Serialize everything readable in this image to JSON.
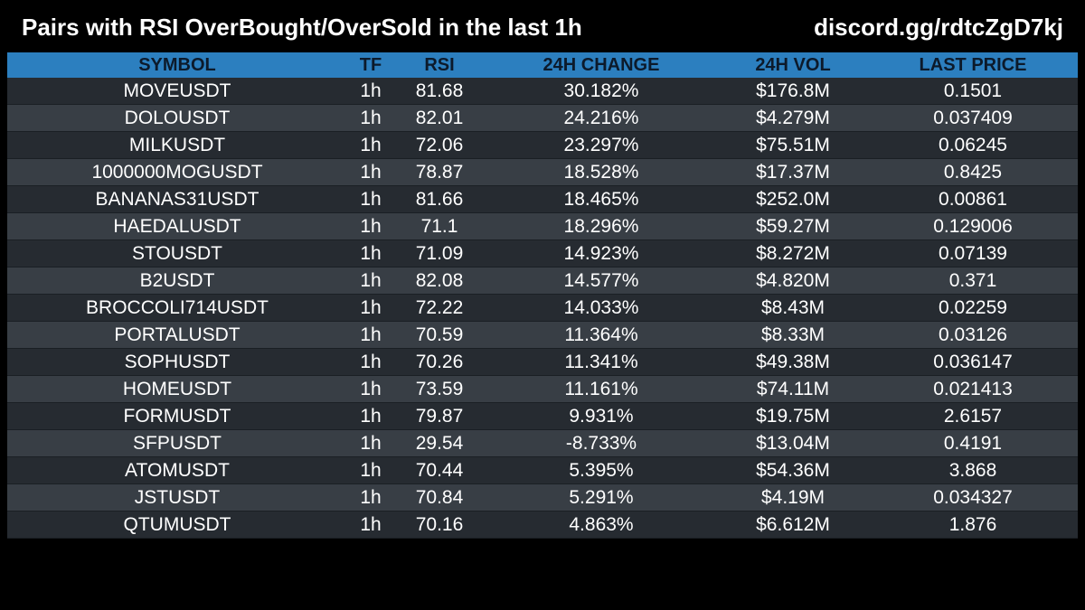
{
  "header": {
    "title": "Pairs with RSI OverBought/OverSold in the last 1h",
    "link": "discord.gg/rdtcZgD7kj"
  },
  "colors": {
    "background": "#000000",
    "header_row": "#2c7fbf",
    "header_text": "#0c1a2b",
    "row_odd": "#262b31",
    "row_even": "#383e45",
    "text": "#ffffff"
  },
  "table": {
    "columns": [
      "SYMBOL",
      "TF",
      "RSI",
      "24H CHANGE",
      "24H VOL",
      "LAST PRICE"
    ],
    "rows": [
      {
        "symbol": "MOVEUSDT",
        "tf": "1h",
        "rsi": "81.68",
        "change": "30.182%",
        "vol": "$176.8M",
        "last": "0.1501"
      },
      {
        "symbol": "DOLOUSDT",
        "tf": "1h",
        "rsi": "82.01",
        "change": "24.216%",
        "vol": "$4.279M",
        "last": "0.037409"
      },
      {
        "symbol": "MILKUSDT",
        "tf": "1h",
        "rsi": "72.06",
        "change": "23.297%",
        "vol": "$75.51M",
        "last": "0.06245"
      },
      {
        "symbol": "1000000MOGUSDT",
        "tf": "1h",
        "rsi": "78.87",
        "change": "18.528%",
        "vol": "$17.37M",
        "last": "0.8425"
      },
      {
        "symbol": "BANANAS31USDT",
        "tf": "1h",
        "rsi": "81.66",
        "change": "18.465%",
        "vol": "$252.0M",
        "last": "0.00861"
      },
      {
        "symbol": "HAEDALUSDT",
        "tf": "1h",
        "rsi": "71.1",
        "change": "18.296%",
        "vol": "$59.27M",
        "last": "0.129006"
      },
      {
        "symbol": "STOUSDT",
        "tf": "1h",
        "rsi": "71.09",
        "change": "14.923%",
        "vol": "$8.272M",
        "last": "0.07139"
      },
      {
        "symbol": "B2USDT",
        "tf": "1h",
        "rsi": "82.08",
        "change": "14.577%",
        "vol": "$4.820M",
        "last": "0.371"
      },
      {
        "symbol": "BROCCOLI714USDT",
        "tf": "1h",
        "rsi": "72.22",
        "change": "14.033%",
        "vol": "$8.43M",
        "last": "0.02259"
      },
      {
        "symbol": "PORTALUSDT",
        "tf": "1h",
        "rsi": "70.59",
        "change": "11.364%",
        "vol": "$8.33M",
        "last": "0.03126"
      },
      {
        "symbol": "SOPHUSDT",
        "tf": "1h",
        "rsi": "70.26",
        "change": "11.341%",
        "vol": "$49.38M",
        "last": "0.036147"
      },
      {
        "symbol": "HOMEUSDT",
        "tf": "1h",
        "rsi": "73.59",
        "change": "11.161%",
        "vol": "$74.11M",
        "last": "0.021413"
      },
      {
        "symbol": "FORMUSDT",
        "tf": "1h",
        "rsi": "79.87",
        "change": "9.931%",
        "vol": "$19.75M",
        "last": "2.6157"
      },
      {
        "symbol": "SFPUSDT",
        "tf": "1h",
        "rsi": "29.54",
        "change": "-8.733%",
        "vol": "$13.04M",
        "last": "0.4191"
      },
      {
        "symbol": "ATOMUSDT",
        "tf": "1h",
        "rsi": "70.44",
        "change": "5.395%",
        "vol": "$54.36M",
        "last": "3.868"
      },
      {
        "symbol": "JSTUSDT",
        "tf": "1h",
        "rsi": "70.84",
        "change": "5.291%",
        "vol": "$4.19M",
        "last": "0.034327"
      },
      {
        "symbol": "QTUMUSDT",
        "tf": "1h",
        "rsi": "70.16",
        "change": "4.863%",
        "vol": "$6.612M",
        "last": "1.876"
      }
    ]
  }
}
